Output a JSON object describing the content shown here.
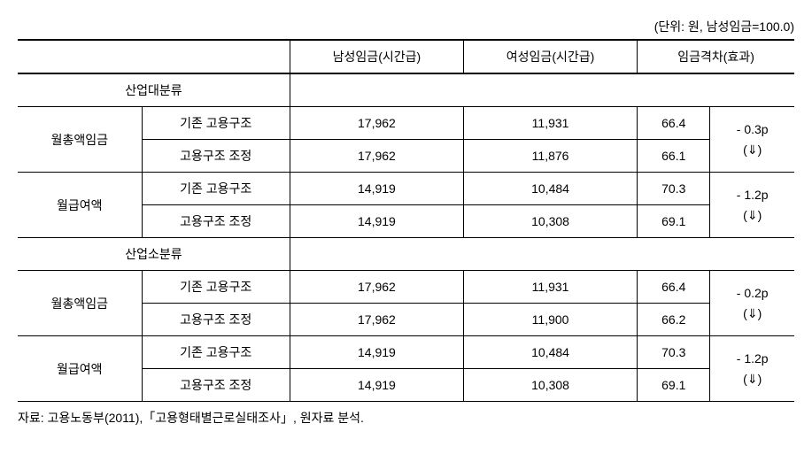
{
  "unit_label": "(단위: 원, 남성임금=100.0)",
  "headers": {
    "empty": "",
    "male_wage": "남성임금(시간급)",
    "female_wage": "여성임금(시간급)",
    "wage_gap": "임금격차(효과)"
  },
  "sections": [
    {
      "title": "산업대분류",
      "groups": [
        {
          "label": "월총액임금",
          "rows": [
            {
              "struct": "기존 고용구조",
              "male": "17,962",
              "female": "11,931",
              "gap": "66.4"
            },
            {
              "struct": "고용구조 조정",
              "male": "17,962",
              "female": "11,876",
              "gap": "66.1"
            }
          ],
          "effect": "- 0.3p\n(⇓)"
        },
        {
          "label": "월급여액",
          "rows": [
            {
              "struct": "기존 고용구조",
              "male": "14,919",
              "female": "10,484",
              "gap": "70.3"
            },
            {
              "struct": "고용구조 조정",
              "male": "14,919",
              "female": "10,308",
              "gap": "69.1"
            }
          ],
          "effect": "- 1.2p\n(⇓)"
        }
      ]
    },
    {
      "title": "산업소분류",
      "groups": [
        {
          "label": "월총액임금",
          "rows": [
            {
              "struct": "기존 고용구조",
              "male": "17,962",
              "female": "11,931",
              "gap": "66.4"
            },
            {
              "struct": "고용구조 조정",
              "male": "17,962",
              "female": "11,900",
              "gap": "66.2"
            }
          ],
          "effect": "- 0.2p\n(⇓)"
        },
        {
          "label": "월급여액",
          "rows": [
            {
              "struct": "기존 고용구조",
              "male": "14,919",
              "female": "10,484",
              "gap": "70.3"
            },
            {
              "struct": "고용구조 조정",
              "male": "14,919",
              "female": "10,308",
              "gap": "69.1"
            }
          ],
          "effect": "- 1.2p\n(⇓)"
        }
      ]
    }
  ],
  "source": "자료: 고용노동부(2011),「고용형태별근로실태조사」, 원자료 분석.",
  "table_style": {
    "border_color": "#000000",
    "background": "#ffffff",
    "font_size": 14,
    "header_border_bottom_width": 2,
    "outer_border_top_width": 2
  }
}
